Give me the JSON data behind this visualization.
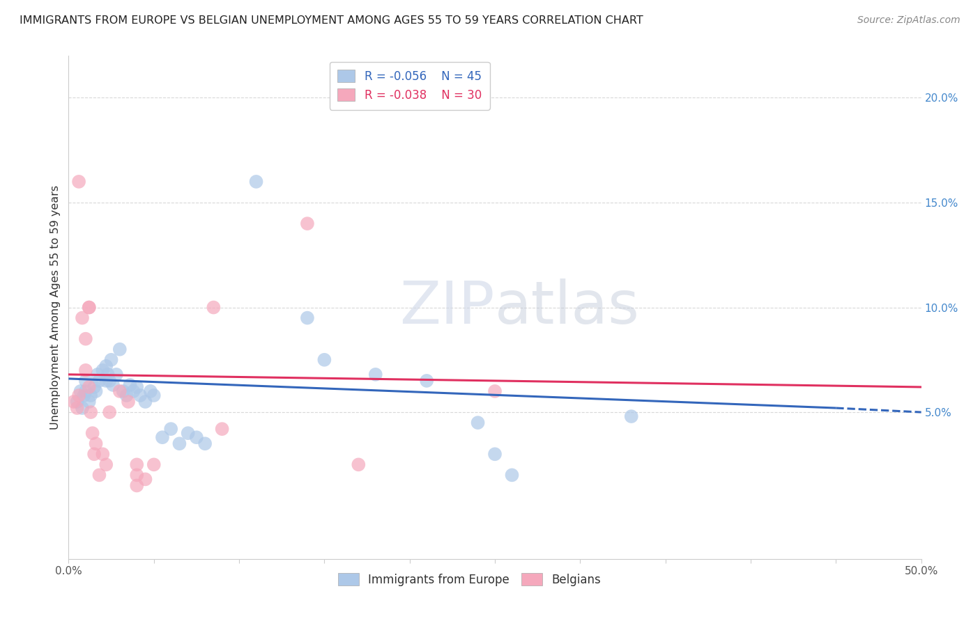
{
  "title": "IMMIGRANTS FROM EUROPE VS BELGIAN UNEMPLOYMENT AMONG AGES 55 TO 59 YEARS CORRELATION CHART",
  "source": "Source: ZipAtlas.com",
  "ylabel": "Unemployment Among Ages 55 to 59 years",
  "xlim": [
    0.0,
    0.5
  ],
  "ylim": [
    -0.02,
    0.22
  ],
  "xticks": [
    0.0,
    0.05,
    0.1,
    0.15,
    0.2,
    0.25,
    0.3,
    0.35,
    0.4,
    0.45,
    0.5
  ],
  "xticklabels_show": [
    true,
    false,
    false,
    false,
    false,
    false,
    false,
    false,
    false,
    false,
    true
  ],
  "xticklabel_0": "0.0%",
  "xticklabel_last": "50.0%",
  "yticks_right": [
    0.05,
    0.1,
    0.15,
    0.2
  ],
  "yticks_right_labels": [
    "5.0%",
    "10.0%",
    "15.0%",
    "20.0%"
  ],
  "blue_R": -0.056,
  "blue_N": 45,
  "pink_R": -0.038,
  "pink_N": 30,
  "legend_label_blue": "Immigrants from Europe",
  "legend_label_pink": "Belgians",
  "blue_color": "#adc8e8",
  "pink_color": "#f5a8bc",
  "blue_line_color": "#3366bb",
  "pink_line_color": "#e03060",
  "blue_scatter": [
    [
      0.005,
      0.055
    ],
    [
      0.007,
      0.06
    ],
    [
      0.008,
      0.052
    ],
    [
      0.009,
      0.058
    ],
    [
      0.01,
      0.06
    ],
    [
      0.01,
      0.065
    ],
    [
      0.012,
      0.055
    ],
    [
      0.013,
      0.058
    ],
    [
      0.015,
      0.062
    ],
    [
      0.016,
      0.06
    ],
    [
      0.017,
      0.068
    ],
    [
      0.018,
      0.065
    ],
    [
      0.02,
      0.07
    ],
    [
      0.022,
      0.065
    ],
    [
      0.022,
      0.072
    ],
    [
      0.023,
      0.068
    ],
    [
      0.024,
      0.065
    ],
    [
      0.025,
      0.075
    ],
    [
      0.026,
      0.063
    ],
    [
      0.028,
      0.068
    ],
    [
      0.03,
      0.08
    ],
    [
      0.032,
      0.06
    ],
    [
      0.034,
      0.058
    ],
    [
      0.036,
      0.063
    ],
    [
      0.038,
      0.06
    ],
    [
      0.04,
      0.062
    ],
    [
      0.042,
      0.058
    ],
    [
      0.045,
      0.055
    ],
    [
      0.048,
      0.06
    ],
    [
      0.05,
      0.058
    ],
    [
      0.055,
      0.038
    ],
    [
      0.06,
      0.042
    ],
    [
      0.065,
      0.035
    ],
    [
      0.07,
      0.04
    ],
    [
      0.075,
      0.038
    ],
    [
      0.08,
      0.035
    ],
    [
      0.11,
      0.16
    ],
    [
      0.14,
      0.095
    ],
    [
      0.15,
      0.075
    ],
    [
      0.18,
      0.068
    ],
    [
      0.21,
      0.065
    ],
    [
      0.24,
      0.045
    ],
    [
      0.25,
      0.03
    ],
    [
      0.26,
      0.02
    ],
    [
      0.33,
      0.048
    ]
  ],
  "pink_scatter": [
    [
      0.003,
      0.055
    ],
    [
      0.005,
      0.052
    ],
    [
      0.006,
      0.058
    ],
    [
      0.006,
      0.16
    ],
    [
      0.008,
      0.095
    ],
    [
      0.01,
      0.085
    ],
    [
      0.01,
      0.07
    ],
    [
      0.012,
      0.062
    ],
    [
      0.012,
      0.1
    ],
    [
      0.012,
      0.1
    ],
    [
      0.013,
      0.05
    ],
    [
      0.014,
      0.04
    ],
    [
      0.015,
      0.03
    ],
    [
      0.016,
      0.035
    ],
    [
      0.018,
      0.02
    ],
    [
      0.02,
      0.03
    ],
    [
      0.022,
      0.025
    ],
    [
      0.024,
      0.05
    ],
    [
      0.03,
      0.06
    ],
    [
      0.035,
      0.055
    ],
    [
      0.04,
      0.025
    ],
    [
      0.04,
      0.02
    ],
    [
      0.04,
      0.015
    ],
    [
      0.045,
      0.018
    ],
    [
      0.05,
      0.025
    ],
    [
      0.085,
      0.1
    ],
    [
      0.09,
      0.042
    ],
    [
      0.14,
      0.14
    ],
    [
      0.17,
      0.025
    ],
    [
      0.25,
      0.06
    ]
  ],
  "blue_trend_x0": 0.0,
  "blue_trend_x1": 0.45,
  "blue_trend_y0": 0.066,
  "blue_trend_y1": 0.052,
  "blue_trend_dashed_x0": 0.45,
  "blue_trend_dashed_x1": 0.5,
  "blue_trend_dashed_y0": 0.052,
  "blue_trend_dashed_y1": 0.05,
  "pink_trend_x0": 0.0,
  "pink_trend_x1": 0.5,
  "pink_trend_y0": 0.068,
  "pink_trend_y1": 0.062,
  "watermark_zip": "ZIP",
  "watermark_atlas": "atlas",
  "background_color": "#ffffff",
  "grid_color": "#d8d8d8"
}
